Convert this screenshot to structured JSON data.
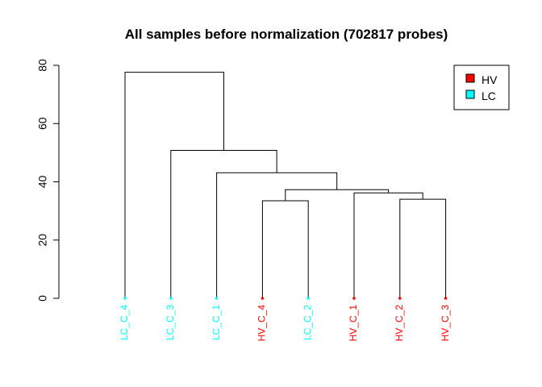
{
  "chart_data": {
    "type": "dendrogram",
    "title": "All samples before normalization (702817 probes)",
    "xlabel": "",
    "ylabel": "",
    "ylim": [
      0,
      80
    ],
    "yticks": [
      0,
      20,
      40,
      60,
      80
    ],
    "colors": {
      "HV": "#ff0000",
      "LC": "#00ffff"
    },
    "leaves": [
      {
        "label": "LC_C_4",
        "group": "LC"
      },
      {
        "label": "LC_C_3",
        "group": "LC"
      },
      {
        "label": "LC_C_1",
        "group": "LC"
      },
      {
        "label": "HV_C_4",
        "group": "HV"
      },
      {
        "label": "LC_C_2",
        "group": "LC"
      },
      {
        "label": "HV_C_1",
        "group": "HV"
      },
      {
        "label": "HV_C_2",
        "group": "HV"
      },
      {
        "label": "HV_C_3",
        "group": "HV"
      }
    ],
    "merges": [
      {
        "id": "m1",
        "left": 3,
        "right": 4,
        "height": 33.5
      },
      {
        "id": "m2",
        "left": 6,
        "right": 7,
        "height": 34.0
      },
      {
        "id": "m3",
        "left": 5,
        "right": "m2",
        "height": 36.2
      },
      {
        "id": "m4",
        "left": "m1",
        "right": "m3",
        "height": 37.3
      },
      {
        "id": "m5",
        "left": 2,
        "right": "m4",
        "height": 43.1
      },
      {
        "id": "m6",
        "left": 1,
        "right": "m5",
        "height": 50.8
      },
      {
        "id": "m7",
        "left": 0,
        "right": "m6",
        "height": 77.6
      }
    ],
    "legend": {
      "position": "top-right",
      "entries": [
        {
          "label": "HV",
          "color": "#ff0000"
        },
        {
          "label": "LC",
          "color": "#00ffff"
        }
      ]
    }
  }
}
